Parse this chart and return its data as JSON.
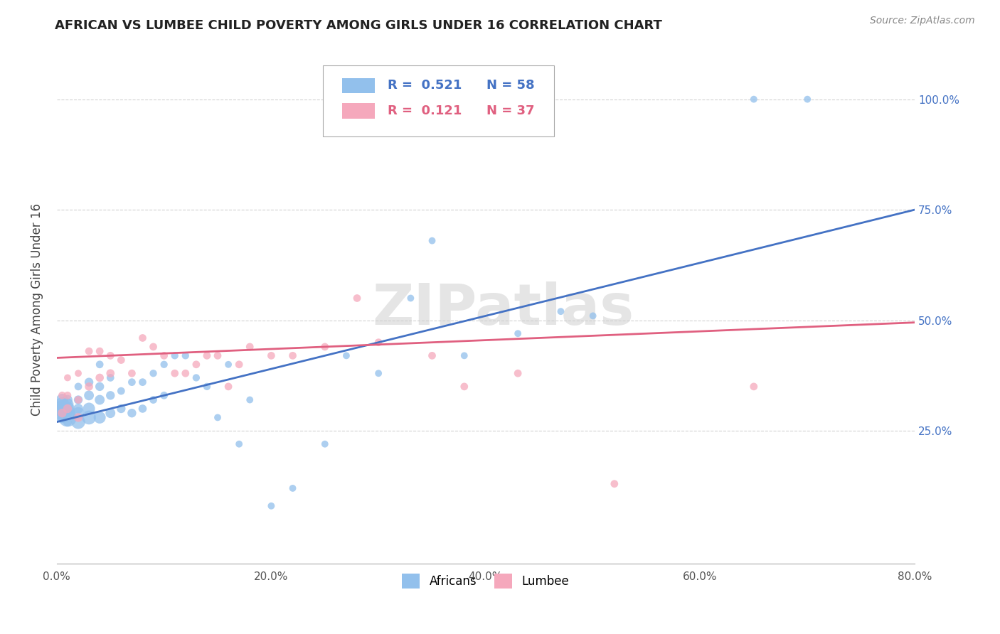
{
  "title": "AFRICAN VS LUMBEE CHILD POVERTY AMONG GIRLS UNDER 16 CORRELATION CHART",
  "source": "Source: ZipAtlas.com",
  "ylabel": "Child Poverty Among Girls Under 16",
  "xlim": [
    0.0,
    0.8
  ],
  "ylim": [
    -0.05,
    1.1
  ],
  "background_color": "#ffffff",
  "watermark": "ZIPatlas",
  "legend_r_african": "0.521",
  "legend_n_african": "58",
  "legend_r_lumbee": "0.121",
  "legend_n_lumbee": "37",
  "african_color": "#92C0EC",
  "lumbee_color": "#F5A8BC",
  "line_african_color": "#4472C4",
  "line_lumbee_color": "#E06080",
  "africans_x": [
    0.005,
    0.005,
    0.005,
    0.005,
    0.005,
    0.01,
    0.01,
    0.01,
    0.01,
    0.01,
    0.01,
    0.02,
    0.02,
    0.02,
    0.02,
    0.02,
    0.03,
    0.03,
    0.03,
    0.03,
    0.04,
    0.04,
    0.04,
    0.04,
    0.05,
    0.05,
    0.05,
    0.06,
    0.06,
    0.07,
    0.07,
    0.08,
    0.08,
    0.09,
    0.09,
    0.1,
    0.1,
    0.11,
    0.12,
    0.13,
    0.14,
    0.15,
    0.16,
    0.17,
    0.18,
    0.2,
    0.22,
    0.25,
    0.27,
    0.3,
    0.33,
    0.35,
    0.38,
    0.43,
    0.47,
    0.5,
    0.65,
    0.7
  ],
  "africans_y": [
    0.29,
    0.3,
    0.31,
    0.32,
    0.28,
    0.28,
    0.29,
    0.3,
    0.31,
    0.32,
    0.27,
    0.27,
    0.29,
    0.3,
    0.32,
    0.35,
    0.28,
    0.3,
    0.33,
    0.36,
    0.28,
    0.32,
    0.35,
    0.4,
    0.29,
    0.33,
    0.37,
    0.3,
    0.34,
    0.29,
    0.36,
    0.3,
    0.36,
    0.32,
    0.38,
    0.33,
    0.4,
    0.42,
    0.42,
    0.37,
    0.35,
    0.28,
    0.4,
    0.22,
    0.32,
    0.08,
    0.12,
    0.22,
    0.42,
    0.38,
    0.55,
    0.68,
    0.42,
    0.47,
    0.52,
    0.51,
    1.0,
    1.0
  ],
  "africans_size": [
    400,
    300,
    200,
    150,
    100,
    350,
    250,
    200,
    150,
    100,
    80,
    200,
    150,
    100,
    80,
    60,
    200,
    150,
    100,
    80,
    150,
    100,
    80,
    60,
    100,
    80,
    60,
    80,
    60,
    80,
    60,
    70,
    60,
    60,
    55,
    60,
    55,
    55,
    55,
    55,
    55,
    50,
    50,
    50,
    50,
    50,
    50,
    50,
    50,
    50,
    50,
    50,
    50,
    50,
    50,
    50,
    50,
    50
  ],
  "lumbee_x": [
    0.005,
    0.005,
    0.01,
    0.01,
    0.01,
    0.02,
    0.02,
    0.02,
    0.03,
    0.03,
    0.04,
    0.04,
    0.05,
    0.05,
    0.06,
    0.07,
    0.08,
    0.09,
    0.1,
    0.11,
    0.12,
    0.13,
    0.14,
    0.15,
    0.16,
    0.17,
    0.18,
    0.2,
    0.22,
    0.25,
    0.28,
    0.3,
    0.35,
    0.38,
    0.43,
    0.52,
    0.65
  ],
  "lumbee_y": [
    0.29,
    0.33,
    0.3,
    0.33,
    0.37,
    0.28,
    0.32,
    0.38,
    0.35,
    0.43,
    0.37,
    0.43,
    0.38,
    0.42,
    0.41,
    0.38,
    0.46,
    0.44,
    0.42,
    0.38,
    0.38,
    0.4,
    0.42,
    0.42,
    0.35,
    0.4,
    0.44,
    0.42,
    0.42,
    0.44,
    0.55,
    0.45,
    0.42,
    0.35,
    0.38,
    0.13,
    0.35
  ],
  "lumbee_size": [
    80,
    60,
    80,
    60,
    50,
    80,
    60,
    50,
    70,
    60,
    70,
    60,
    70,
    60,
    60,
    60,
    60,
    60,
    60,
    60,
    60,
    60,
    60,
    60,
    60,
    60,
    60,
    60,
    60,
    60,
    60,
    60,
    60,
    60,
    60,
    60,
    60
  ],
  "line_african_start_y": 0.27,
  "line_african_end_y": 0.75,
  "line_lumbee_start_y": 0.415,
  "line_lumbee_end_y": 0.495,
  "xtick_vals": [
    0.0,
    0.2,
    0.4,
    0.6,
    0.8
  ],
  "xtick_labels": [
    "0.0%",
    "20.0%",
    "40.0%",
    "60.0%",
    "80.0%"
  ],
  "ytick_vals": [
    0.25,
    0.5,
    0.75,
    1.0
  ],
  "ytick_labels": [
    "25.0%",
    "50.0%",
    "75.0%",
    "100.0%"
  ]
}
